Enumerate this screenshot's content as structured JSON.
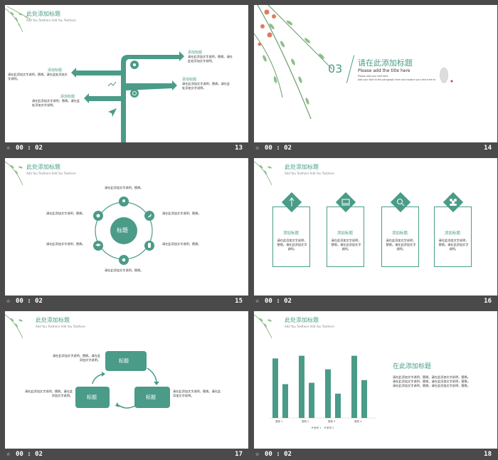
{
  "footer": {
    "time": "00 : 02"
  },
  "slides": {
    "s13": {
      "number": "13",
      "title": "此处添加标题",
      "subtitle": "Add You Texthere Add You Texthere",
      "items": [
        {
          "label": "添加标题",
          "text": "请在此添加文字说明，替换。请在此处添加文字说明。"
        },
        {
          "label": "添加标题",
          "text": "请在此添加文字说明，替换。请在此处添加文字说明。"
        },
        {
          "label": "添加标题",
          "text": "请在此添加文字说明，替换。请在此处添加文字说明。"
        },
        {
          "label": "添加标题",
          "text": "请在此添加文字说明，替换。请在此处添加文字说明。"
        }
      ]
    },
    "s14": {
      "number": "14",
      "section_number": "03",
      "title": "请在此添加标题",
      "subtitle": "Please add the title here",
      "note1": "Please add your text here",
      "note2": "Add your text to the paragraph here and replace your text here to complete your task"
    },
    "s15": {
      "number": "15",
      "title": "此处添加标题",
      "subtitle": "Add You Texthere Add You Texthere",
      "center": "标题",
      "label": "请在此添加文字说明，替换。"
    },
    "s16": {
      "number": "16",
      "title": "此处添加标题",
      "subtitle": "Add You Texthere Add You Texthere",
      "cards": [
        {
          "title": "添加标题",
          "text": "请在此添加文字说明，替换。请在此添加文字说明。"
        },
        {
          "title": "添加标题",
          "text": "请在此添加文字说明，替换。请在此添加文字说明。"
        },
        {
          "title": "添加标题",
          "text": "请在此添加文字说明，替换。请在此添加文字说明。"
        },
        {
          "title": "添加标题",
          "text": "请在此添加文字说明，替换。请在此添加文字说明。"
        }
      ]
    },
    "s17": {
      "number": "17",
      "title": "此处添加标题",
      "subtitle": "Add You Texthere Add You Texthere",
      "box": "标题",
      "text": "请在此添加文字说明，替换。请在此添加文字说明。"
    },
    "s18": {
      "number": "18",
      "title": "此处添加标题",
      "subtitle": "Add You Texthere Add You Texthere",
      "heading": "在此添加标题",
      "paragraph": "请在此添加文字说明，替换。请在此添加文字说明，替换。请在此添加文字说明，替换。请在此添加文字说明，替换。请在此添加文字说明，替换。请在此添加文字说明，替换。"
    }
  },
  "chart_data": {
    "type": "bar",
    "categories": [
      "类别 1",
      "类别 2",
      "类别 3",
      "类别 4"
    ],
    "series": [
      {
        "name": "系列 1",
        "values": [
          4.4,
          4.6,
          3.6,
          4.6
        ]
      },
      {
        "name": "系列 2",
        "values": [
          2.5,
          2.6,
          1.8,
          2.8
        ]
      }
    ],
    "ylim": [
      0,
      5
    ],
    "colors": [
      "#4a9b88",
      "#4a9b88"
    ]
  },
  "colors": {
    "accent": "#4a9b88",
    "background": "#4a4a4a"
  }
}
